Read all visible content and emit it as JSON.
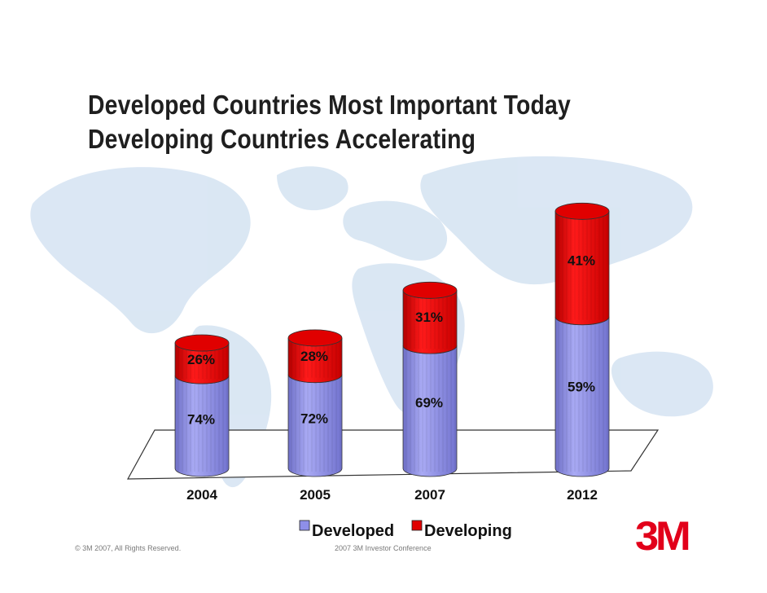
{
  "slide": {
    "title_line1": "Developed Countries Most Important Today",
    "title_line2": "Developing Countries Accelerating",
    "footer_copyright": "© 3M 2007, All Rights Reserved.",
    "footer_event": "2007 3M Investor Conference",
    "logo_text": "3M",
    "logo_color": "#e2001a"
  },
  "chart_data": {
    "type": "bar",
    "stacked": true,
    "style": "3d-cylinder",
    "unit": "%",
    "categories": [
      "2004",
      "2005",
      "2007",
      "2012"
    ],
    "series": [
      {
        "name": "Developed",
        "color": "#8e8fe8",
        "values": [
          74,
          72,
          69,
          59
        ],
        "labels": [
          "74%",
          "72%",
          "69%",
          "59%"
        ]
      },
      {
        "name": "Developing",
        "color": "#e00000",
        "values": [
          26,
          28,
          31,
          41
        ],
        "labels": [
          "26%",
          "28%",
          "31%",
          "41%"
        ]
      }
    ],
    "legend": {
      "position": "bottom",
      "entries": [
        "Developed",
        "Developing"
      ]
    },
    "relative_total_size": [
      1.0,
      1.04,
      1.42,
      2.05
    ]
  }
}
